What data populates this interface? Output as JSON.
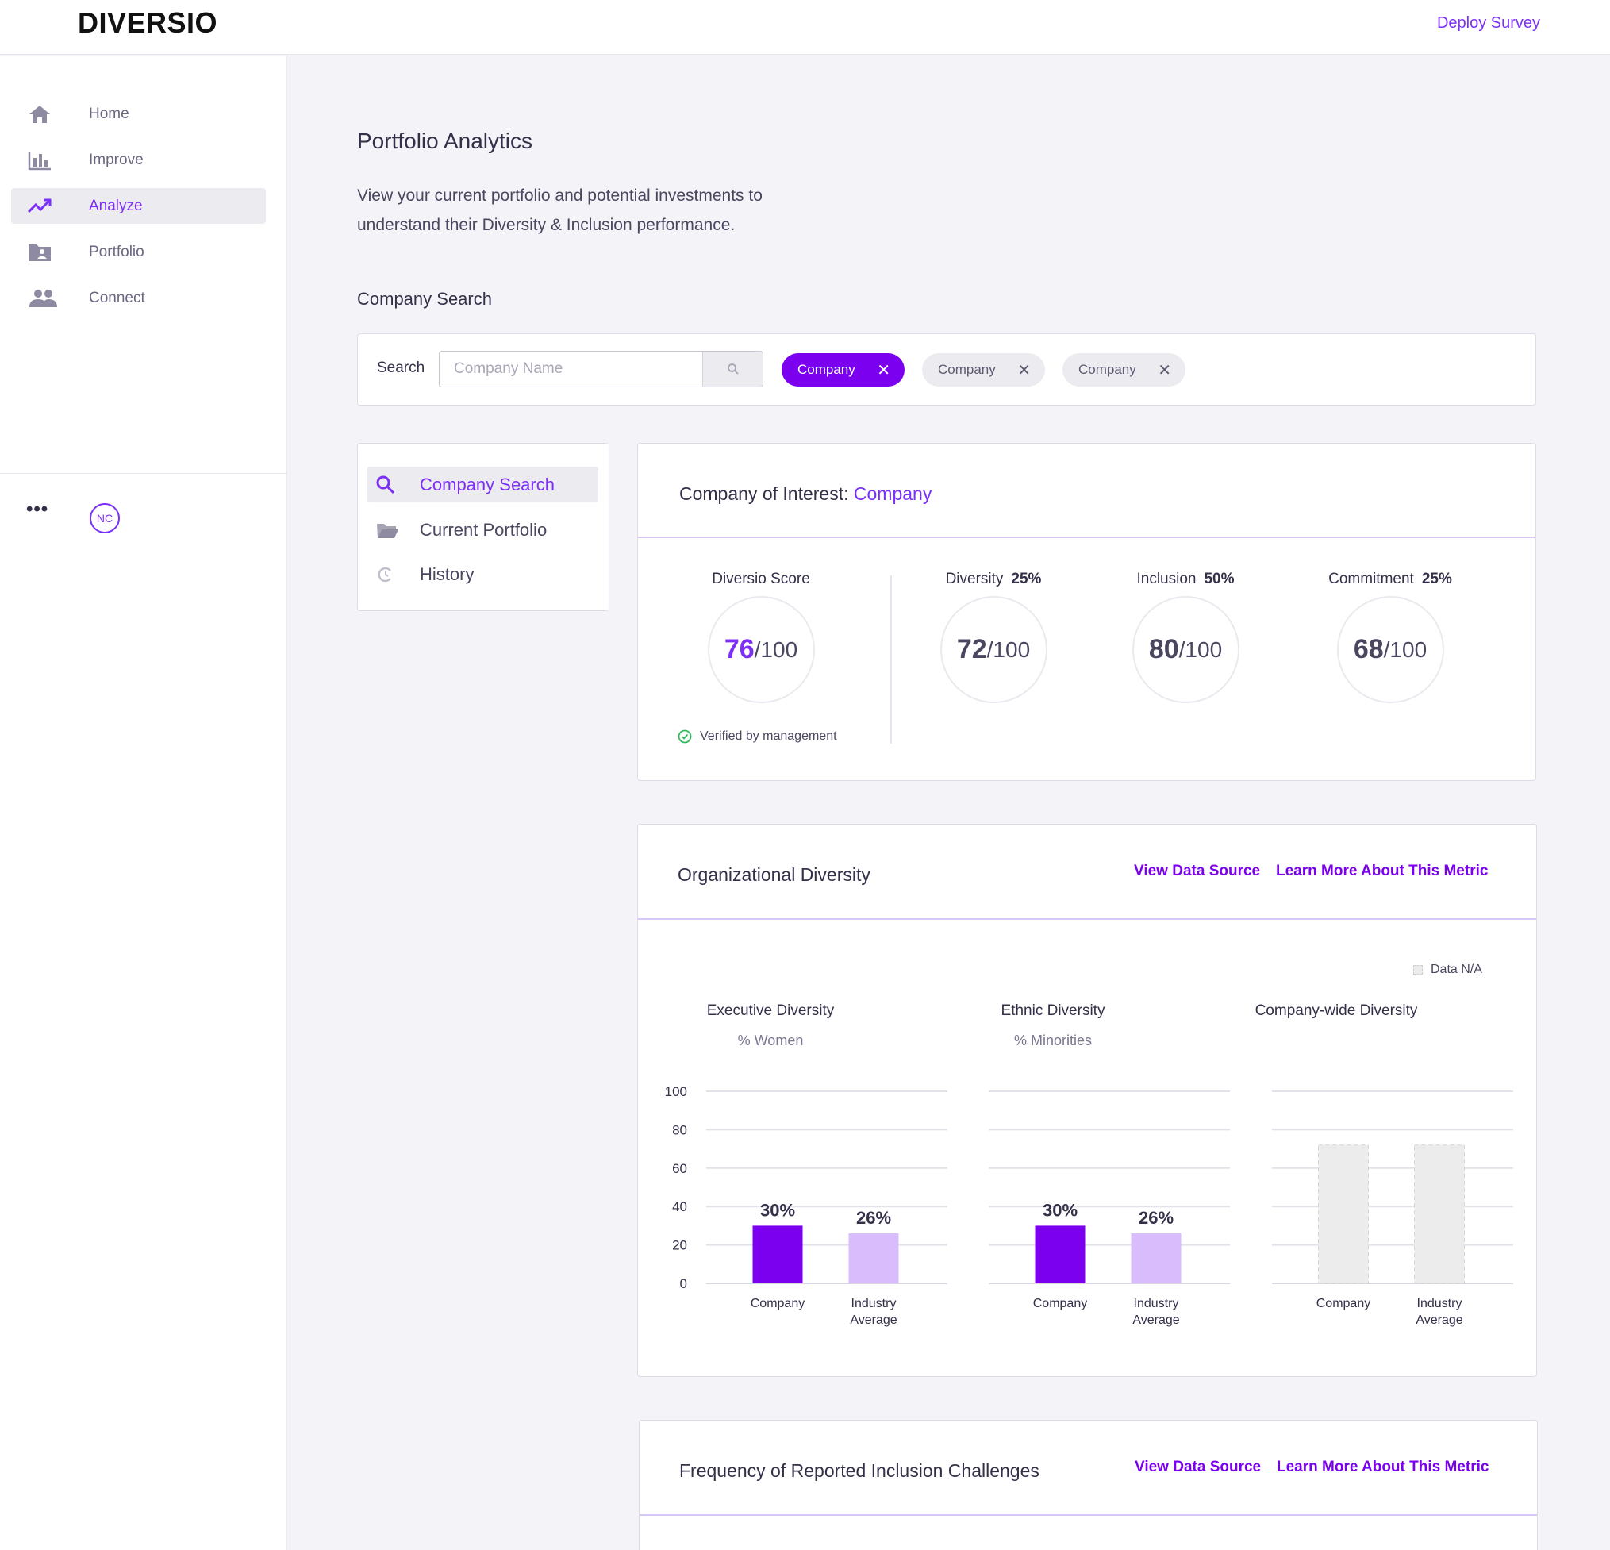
{
  "brand": {
    "logo": "DIVERSIO",
    "deploy_link": "Deploy Survey",
    "accent": "#7b00f0"
  },
  "sidebar": {
    "items": [
      {
        "label": "Home",
        "icon": "home-icon",
        "active": false
      },
      {
        "label": "Improve",
        "icon": "bar-chart-icon",
        "active": false
      },
      {
        "label": "Analyze",
        "icon": "trending-up-icon",
        "active": true
      },
      {
        "label": "Portfolio",
        "icon": "folder-user-icon",
        "active": false
      },
      {
        "label": "Connect",
        "icon": "people-icon",
        "active": false
      }
    ],
    "more": "•••",
    "avatar_initials": "NC"
  },
  "page": {
    "title": "Portfolio Analytics",
    "description": "View your current portfolio and potential investments to understand their Diversity & Inclusion performance.",
    "section_title": "Company Search"
  },
  "search": {
    "label": "Search",
    "placeholder": "Company Name",
    "value": "",
    "chips": [
      {
        "label": "Company",
        "active": true
      },
      {
        "label": "Company",
        "active": false
      },
      {
        "label": "Company",
        "active": false
      }
    ]
  },
  "tabs": [
    {
      "label": "Company Search",
      "icon": "search-icon",
      "active": true
    },
    {
      "label": "Current Portfolio",
      "icon": "folder-open-icon",
      "active": false
    },
    {
      "label": "History",
      "icon": "history-icon",
      "active": false
    }
  ],
  "company_of_interest": {
    "label": "Company of Interest:",
    "value": "Company",
    "scores": [
      {
        "title": "Diversio Score",
        "weight": "",
        "score": "76",
        "of": "/100"
      },
      {
        "title": "Diversity",
        "weight": "25%",
        "score": "72",
        "of": "/100"
      },
      {
        "title": "Inclusion",
        "weight": "50%",
        "score": "80",
        "of": "/100"
      },
      {
        "title": "Commitment",
        "weight": "25%",
        "score": "68",
        "of": "/100"
      }
    ],
    "verified": "Verified by management"
  },
  "org_diversity": {
    "title": "Organizational Diversity",
    "link_source": "View Data Source",
    "link_learn": "Learn More About This Metric",
    "legend": "Data N/A",
    "charts": [
      {
        "title": "Executive Diversity",
        "subtitle": "% Women"
      },
      {
        "title": "Ethnic Diversity",
        "subtitle": "% Minorities"
      },
      {
        "title": "Company-wide Diversity",
        "subtitle": ""
      }
    ]
  },
  "chart_data": [
    {
      "type": "bar",
      "title": "Executive Diversity",
      "subtitle": "% Women",
      "categories": [
        "Company",
        "Industry Average"
      ],
      "values": [
        30,
        26
      ],
      "value_labels": [
        "30%",
        "26%"
      ],
      "colors": [
        "#7b00f0",
        "#d8bcfb"
      ],
      "yticks": [
        "100",
        "80",
        "60",
        "40",
        "20",
        "0"
      ],
      "ylim": [
        0,
        100
      ],
      "grid": true
    },
    {
      "type": "bar",
      "title": "Ethnic Diversity",
      "subtitle": "% Minorities",
      "categories": [
        "Company",
        "Industry Average"
      ],
      "values": [
        30,
        26
      ],
      "value_labels": [
        "30%",
        "26%"
      ],
      "colors": [
        "#7b00f0",
        "#d8bcfb"
      ],
      "ylim": [
        0,
        100
      ],
      "grid": true
    },
    {
      "type": "bar",
      "title": "Company-wide Diversity",
      "categories": [
        "Company",
        "Industry Average"
      ],
      "values": [
        null,
        null
      ],
      "value_labels": [
        "",
        ""
      ],
      "na": true,
      "colors": [
        "#ececec",
        "#ececec"
      ],
      "ylim": [
        0,
        100
      ],
      "grid": true
    }
  ],
  "inclusion_challenges": {
    "title": "Frequency of Reported Inclusion Challenges",
    "link_source": "View Data Source",
    "link_learn": "Learn More About This Metric"
  }
}
